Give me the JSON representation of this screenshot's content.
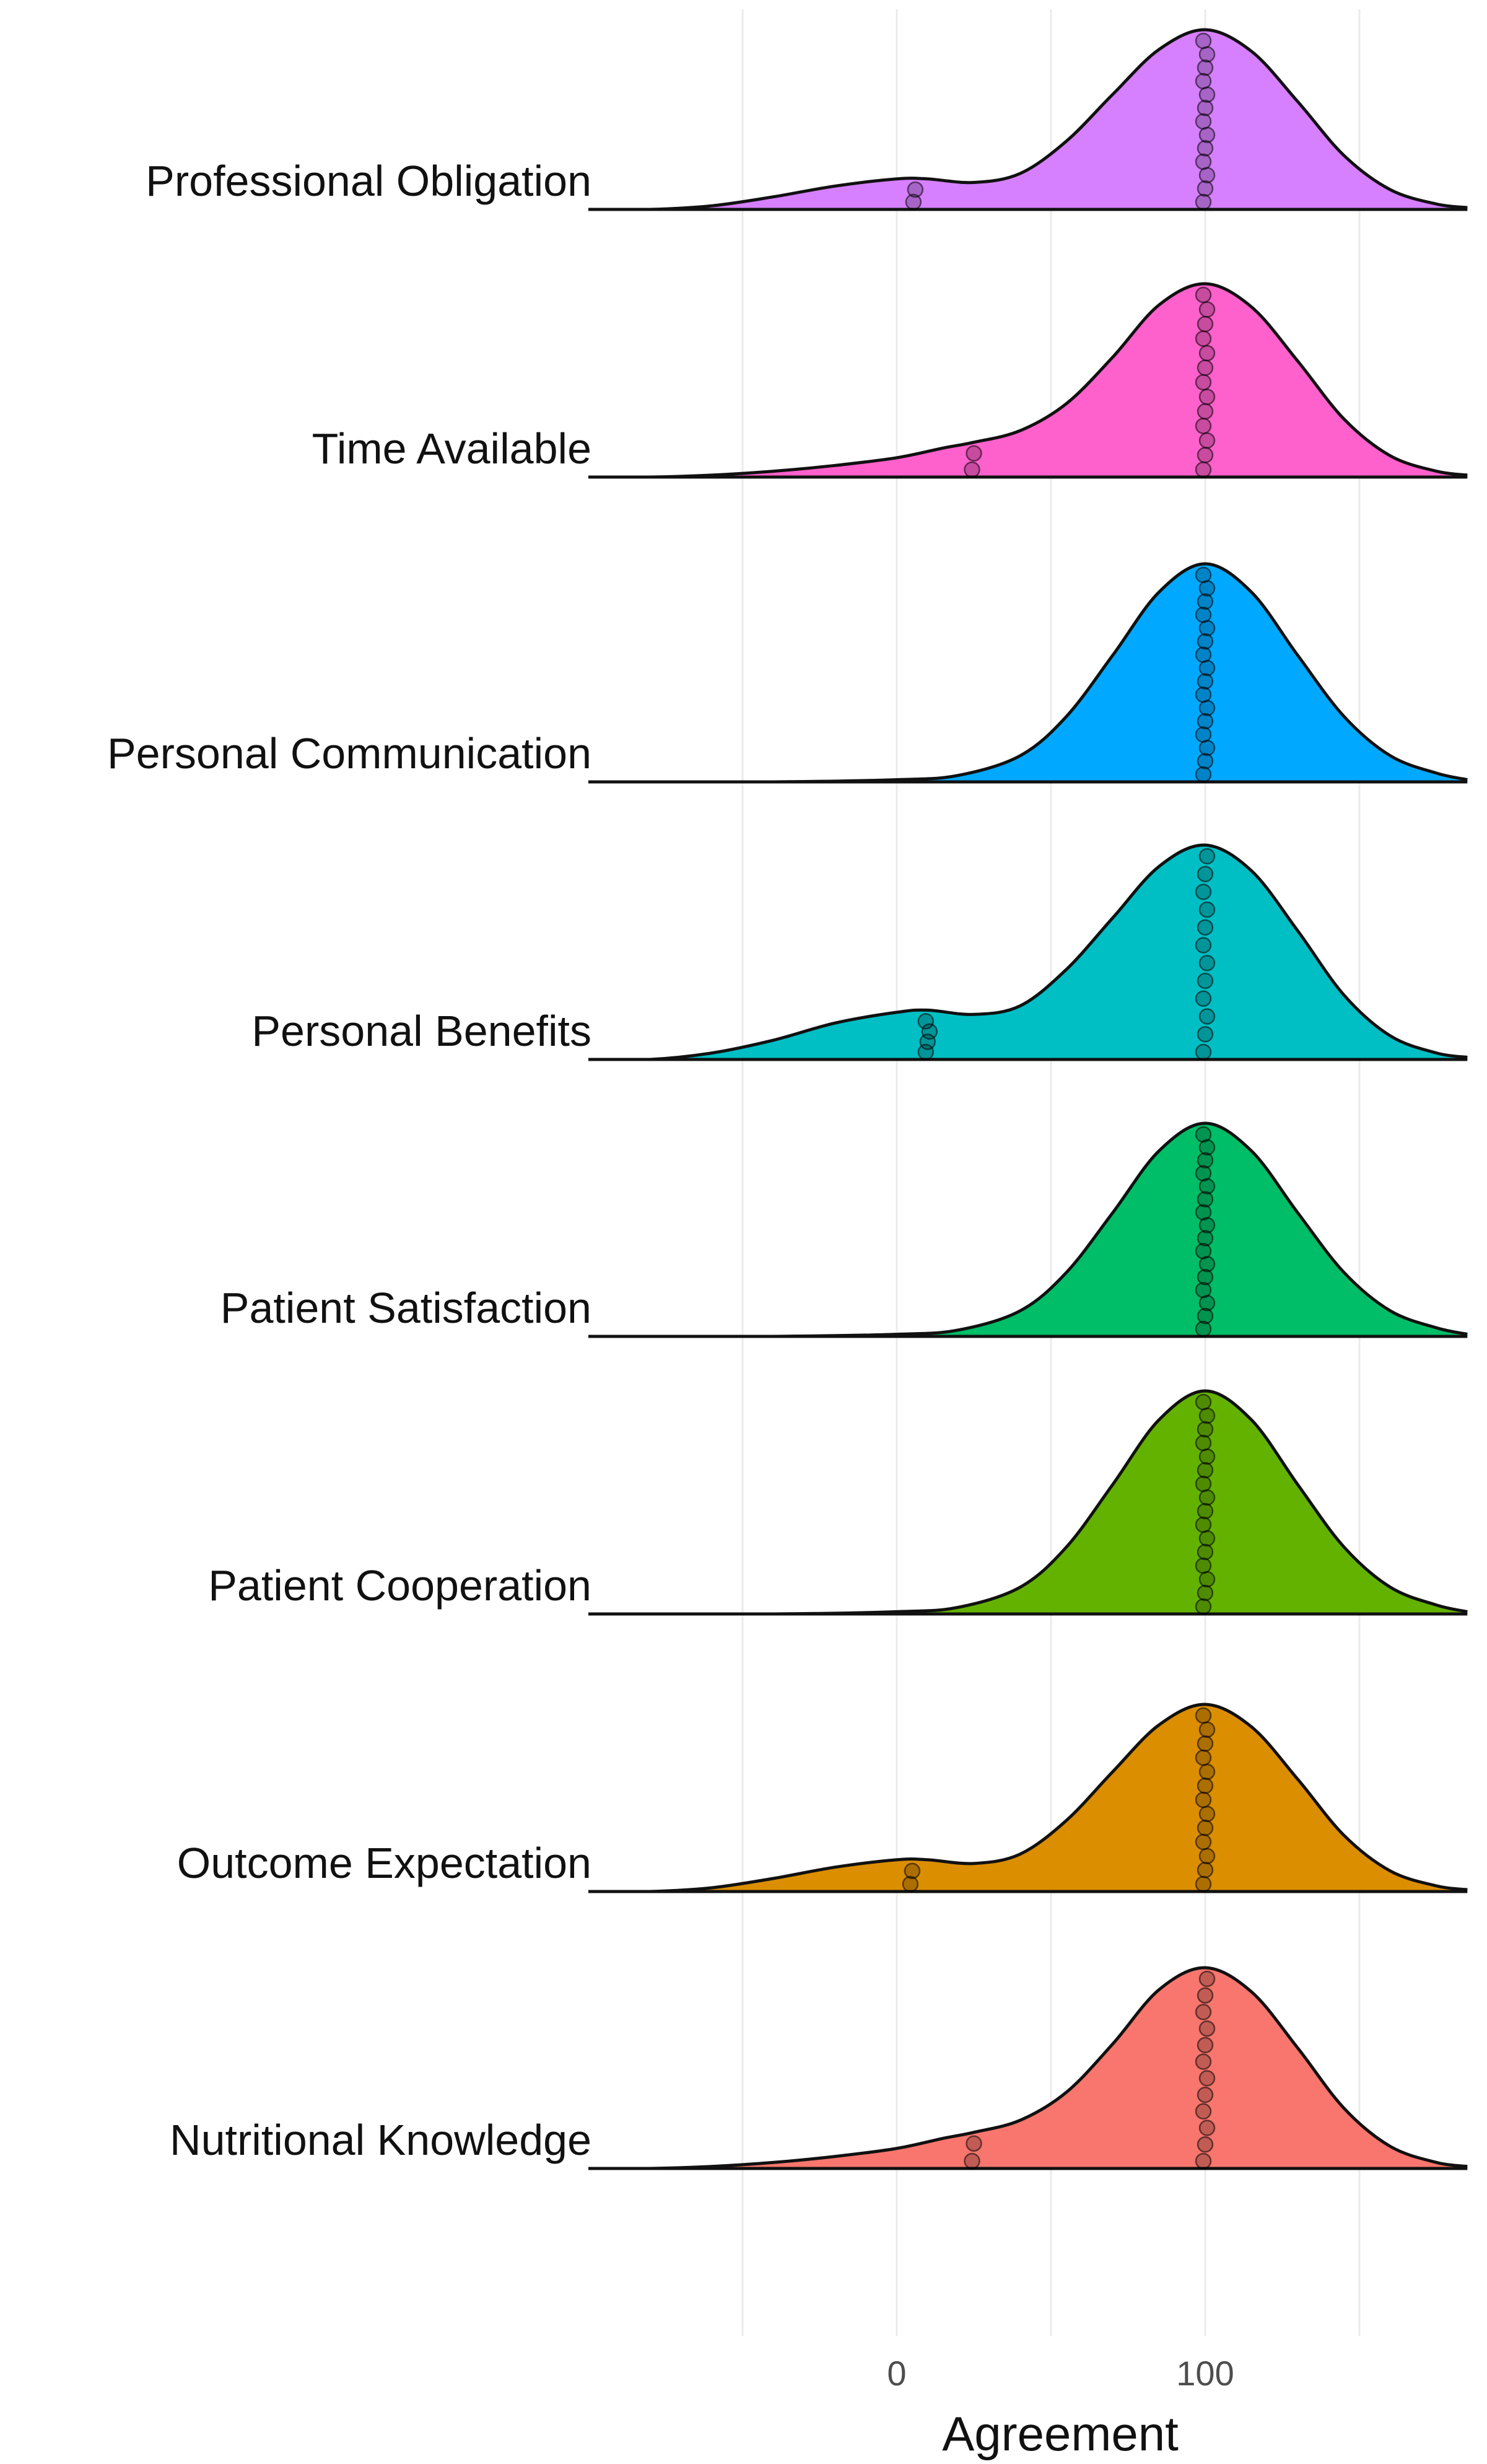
{
  "chart_data": {
    "type": "ridgeline",
    "xlabel": "Agreement",
    "ylabel": "",
    "xlim": [
      -100,
      185
    ],
    "x_ticks": [
      0,
      100
    ],
    "x_tick_labels": [
      "0",
      "100"
    ],
    "x_gridlines": [
      -50,
      0,
      50,
      100,
      150
    ],
    "grid": true,
    "legend": "none",
    "categories": [
      "Professional Obligation",
      "Time Available",
      "Personal Communication",
      "Personal Benefits",
      "Patient Satisfaction",
      "Patient Cooperation",
      "Outcome Expectation",
      "Nutritional Knowledge"
    ],
    "series": [
      {
        "name": "Professional Obligation",
        "color": "#D680FF",
        "density": [
          {
            "x": -80,
            "y": 0.0
          },
          {
            "x": -60,
            "y": 0.02
          },
          {
            "x": -40,
            "y": 0.07
          },
          {
            "x": -20,
            "y": 0.13
          },
          {
            "x": 0,
            "y": 0.17
          },
          {
            "x": 10,
            "y": 0.17
          },
          {
            "x": 25,
            "y": 0.15
          },
          {
            "x": 40,
            "y": 0.2
          },
          {
            "x": 55,
            "y": 0.38
          },
          {
            "x": 70,
            "y": 0.64
          },
          {
            "x": 85,
            "y": 0.89
          },
          {
            "x": 100,
            "y": 1.0
          },
          {
            "x": 115,
            "y": 0.88
          },
          {
            "x": 130,
            "y": 0.6
          },
          {
            "x": 145,
            "y": 0.3
          },
          {
            "x": 160,
            "y": 0.11
          },
          {
            "x": 175,
            "y": 0.03
          },
          {
            "x": 185,
            "y": 0.01
          }
        ],
        "points": [
          6,
          6,
          100,
          100,
          100,
          100,
          100,
          100,
          100,
          100,
          100,
          100,
          100,
          100,
          100
        ]
      },
      {
        "name": "Time Available",
        "color": "#FF61CC",
        "density": [
          {
            "x": -80,
            "y": 0.0
          },
          {
            "x": -60,
            "y": 0.01
          },
          {
            "x": -40,
            "y": 0.03
          },
          {
            "x": -20,
            "y": 0.06
          },
          {
            "x": 0,
            "y": 0.1
          },
          {
            "x": 15,
            "y": 0.15
          },
          {
            "x": 25,
            "y": 0.18
          },
          {
            "x": 40,
            "y": 0.24
          },
          {
            "x": 55,
            "y": 0.38
          },
          {
            "x": 70,
            "y": 0.62
          },
          {
            "x": 85,
            "y": 0.89
          },
          {
            "x": 100,
            "y": 1.0
          },
          {
            "x": 115,
            "y": 0.88
          },
          {
            "x": 130,
            "y": 0.6
          },
          {
            "x": 145,
            "y": 0.3
          },
          {
            "x": 160,
            "y": 0.11
          },
          {
            "x": 175,
            "y": 0.03
          },
          {
            "x": 185,
            "y": 0.01
          }
        ],
        "points": [
          25,
          25,
          100,
          100,
          100,
          100,
          100,
          100,
          100,
          100,
          100,
          100,
          100,
          100,
          100
        ]
      },
      {
        "name": "Personal Communication",
        "color": "#00A9FF",
        "density": [
          {
            "x": -80,
            "y": 0.0
          },
          {
            "x": -40,
            "y": 0.0
          },
          {
            "x": 0,
            "y": 0.01
          },
          {
            "x": 20,
            "y": 0.03
          },
          {
            "x": 40,
            "y": 0.12
          },
          {
            "x": 55,
            "y": 0.3
          },
          {
            "x": 70,
            "y": 0.58
          },
          {
            "x": 85,
            "y": 0.87
          },
          {
            "x": 100,
            "y": 1.0
          },
          {
            "x": 115,
            "y": 0.87
          },
          {
            "x": 130,
            "y": 0.58
          },
          {
            "x": 145,
            "y": 0.3
          },
          {
            "x": 160,
            "y": 0.12
          },
          {
            "x": 175,
            "y": 0.04
          },
          {
            "x": 185,
            "y": 0.01
          }
        ],
        "points": [
          100,
          100,
          100,
          100,
          100,
          100,
          100,
          100,
          100,
          100,
          100,
          100,
          100,
          100,
          100,
          100
        ]
      },
      {
        "name": "Personal Benefits",
        "color": "#00BFC4",
        "density": [
          {
            "x": -80,
            "y": 0.0
          },
          {
            "x": -60,
            "y": 0.03
          },
          {
            "x": -40,
            "y": 0.09
          },
          {
            "x": -20,
            "y": 0.17
          },
          {
            "x": 0,
            "y": 0.22
          },
          {
            "x": 10,
            "y": 0.23
          },
          {
            "x": 25,
            "y": 0.21
          },
          {
            "x": 40,
            "y": 0.25
          },
          {
            "x": 55,
            "y": 0.42
          },
          {
            "x": 70,
            "y": 0.66
          },
          {
            "x": 85,
            "y": 0.9
          },
          {
            "x": 100,
            "y": 1.0
          },
          {
            "x": 115,
            "y": 0.88
          },
          {
            "x": 130,
            "y": 0.6
          },
          {
            "x": 145,
            "y": 0.3
          },
          {
            "x": 160,
            "y": 0.11
          },
          {
            "x": 175,
            "y": 0.03
          },
          {
            "x": 185,
            "y": 0.01
          }
        ],
        "points": [
          10,
          10,
          10,
          10,
          100,
          100,
          100,
          100,
          100,
          100,
          100,
          100,
          100,
          100,
          100,
          100
        ]
      },
      {
        "name": "Patient Satisfaction",
        "color": "#00BE67",
        "density": [
          {
            "x": -80,
            "y": 0.0
          },
          {
            "x": -40,
            "y": 0.0
          },
          {
            "x": 0,
            "y": 0.01
          },
          {
            "x": 20,
            "y": 0.03
          },
          {
            "x": 40,
            "y": 0.12
          },
          {
            "x": 55,
            "y": 0.3
          },
          {
            "x": 70,
            "y": 0.58
          },
          {
            "x": 85,
            "y": 0.87
          },
          {
            "x": 100,
            "y": 1.0
          },
          {
            "x": 115,
            "y": 0.87
          },
          {
            "x": 130,
            "y": 0.58
          },
          {
            "x": 145,
            "y": 0.3
          },
          {
            "x": 160,
            "y": 0.12
          },
          {
            "x": 175,
            "y": 0.04
          },
          {
            "x": 185,
            "y": 0.01
          }
        ],
        "points": [
          100,
          100,
          100,
          100,
          100,
          100,
          100,
          100,
          100,
          100,
          100,
          100,
          100,
          100,
          100,
          100
        ]
      },
      {
        "name": "Patient Cooperation",
        "color": "#64B200",
        "density": [
          {
            "x": -80,
            "y": 0.0
          },
          {
            "x": -40,
            "y": 0.0
          },
          {
            "x": 0,
            "y": 0.01
          },
          {
            "x": 20,
            "y": 0.03
          },
          {
            "x": 40,
            "y": 0.12
          },
          {
            "x": 55,
            "y": 0.3
          },
          {
            "x": 70,
            "y": 0.58
          },
          {
            "x": 85,
            "y": 0.87
          },
          {
            "x": 100,
            "y": 1.0
          },
          {
            "x": 115,
            "y": 0.87
          },
          {
            "x": 130,
            "y": 0.58
          },
          {
            "x": 145,
            "y": 0.3
          },
          {
            "x": 160,
            "y": 0.12
          },
          {
            "x": 175,
            "y": 0.04
          },
          {
            "x": 185,
            "y": 0.01
          }
        ],
        "points": [
          100,
          100,
          100,
          100,
          100,
          100,
          100,
          100,
          100,
          100,
          100,
          100,
          100,
          100,
          100,
          100
        ]
      },
      {
        "name": "Outcome Expectation",
        "color": "#DB8E00",
        "density": [
          {
            "x": -80,
            "y": 0.0
          },
          {
            "x": -60,
            "y": 0.02
          },
          {
            "x": -40,
            "y": 0.07
          },
          {
            "x": -20,
            "y": 0.13
          },
          {
            "x": 0,
            "y": 0.17
          },
          {
            "x": 10,
            "y": 0.17
          },
          {
            "x": 25,
            "y": 0.15
          },
          {
            "x": 40,
            "y": 0.2
          },
          {
            "x": 55,
            "y": 0.38
          },
          {
            "x": 70,
            "y": 0.64
          },
          {
            "x": 85,
            "y": 0.89
          },
          {
            "x": 100,
            "y": 1.0
          },
          {
            "x": 115,
            "y": 0.88
          },
          {
            "x": 130,
            "y": 0.6
          },
          {
            "x": 145,
            "y": 0.3
          },
          {
            "x": 160,
            "y": 0.11
          },
          {
            "x": 175,
            "y": 0.03
          },
          {
            "x": 185,
            "y": 0.01
          }
        ],
        "points": [
          5,
          5,
          100,
          100,
          100,
          100,
          100,
          100,
          100,
          100,
          100,
          100,
          100,
          100,
          100
        ]
      },
      {
        "name": "Nutritional Knowledge",
        "color": "#F8766D",
        "density": [
          {
            "x": -80,
            "y": 0.0
          },
          {
            "x": -60,
            "y": 0.01
          },
          {
            "x": -40,
            "y": 0.03
          },
          {
            "x": -20,
            "y": 0.06
          },
          {
            "x": 0,
            "y": 0.1
          },
          {
            "x": 15,
            "y": 0.15
          },
          {
            "x": 25,
            "y": 0.18
          },
          {
            "x": 40,
            "y": 0.24
          },
          {
            "x": 55,
            "y": 0.38
          },
          {
            "x": 70,
            "y": 0.62
          },
          {
            "x": 85,
            "y": 0.89
          },
          {
            "x": 100,
            "y": 1.0
          },
          {
            "x": 115,
            "y": 0.88
          },
          {
            "x": 130,
            "y": 0.6
          },
          {
            "x": 145,
            "y": 0.3
          },
          {
            "x": 160,
            "y": 0.11
          },
          {
            "x": 175,
            "y": 0.03
          },
          {
            "x": 185,
            "y": 0.01
          }
        ],
        "points": [
          25,
          25,
          100,
          100,
          100,
          100,
          100,
          100,
          100,
          100,
          100,
          100,
          100,
          100
        ]
      }
    ]
  }
}
